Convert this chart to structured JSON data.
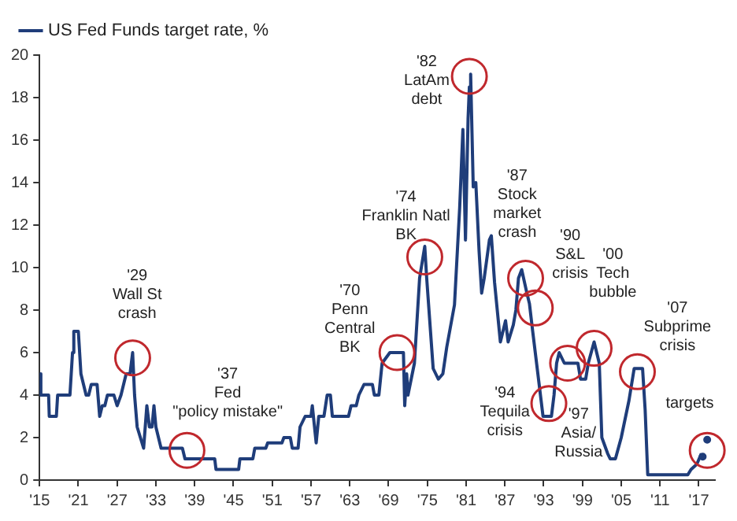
{
  "chart_data": {
    "type": "line",
    "x": [
      1915,
      1915.2,
      1916.4,
      1916.5,
      1917.6,
      1917.8,
      1919.7,
      1920.1,
      1920.3,
      1921,
      1921.4,
      1921.8,
      1922.2,
      1922.6,
      1923,
      1923.9,
      1924.3,
      1924.7,
      1925.1,
      1925.5,
      1926.5,
      1927,
      1927.6,
      1928.4,
      1929,
      1929.4,
      1929.7,
      1930.1,
      1930.6,
      1931.1,
      1931.6,
      1932,
      1932.4,
      1932.7,
      1933,
      1933.8,
      1937.1,
      1937.5,
      1942.1,
      1942.3,
      1945.8,
      1946,
      1948,
      1948.3,
      1950,
      1950.3,
      1952.5,
      1952.8,
      1953.8,
      1954.1,
      1955,
      1955.3,
      1956.1,
      1957,
      1957.2,
      1957.8,
      1958.2,
      1959,
      1959.5,
      1960,
      1960.3,
      1962.8,
      1963.2,
      1964,
      1964.4,
      1965.2,
      1966.5,
      1966.8,
      1967.5,
      1968,
      1969.2,
      1971.3,
      1971.5,
      1971.8,
      1972,
      1973,
      1973.8,
      1974.6,
      1974.9,
      1975.9,
      1976.7,
      1977.4,
      1978,
      1979.2,
      1980,
      1980.5,
      1980.9,
      1981.3,
      1981.5,
      1981.7,
      1982.1,
      1982.5,
      1983,
      1983.4,
      1983.8,
      1984.6,
      1984.9,
      1985.4,
      1986.3,
      1987.1,
      1987.5,
      1988.3,
      1988.7,
      1989.1,
      1989.6,
      1990.4,
      1990.8,
      1991.3,
      1992.1,
      1992.9,
      1994.2,
      1994.6,
      1995,
      1995.4,
      1996.2,
      1998.3,
      1998.7,
      1999.5,
      1999.9,
      2000.8,
      2001.6,
      2002,
      2002.9,
      2003.3,
      2004.1,
      2005,
      2006.2,
      2007,
      2008.3,
      2008.7,
      2009.1,
      2015.3,
      2015.8,
      2016.7,
      2017.4
    ],
    "series": [
      {
        "name": "US Fed Funds target rate, %",
        "color": "#1f3d7a",
        "values": [
          5,
          4,
          4,
          3,
          3,
          4,
          4,
          6,
          7,
          7,
          5,
          4.5,
          4,
          4,
          4.5,
          4.5,
          3,
          3.5,
          3.5,
          4,
          4,
          3.5,
          4,
          5,
          5,
          6,
          4,
          2.5,
          2,
          1.5,
          3.5,
          2.5,
          2.5,
          3.5,
          2.5,
          1.5,
          1.5,
          1,
          1,
          0.5,
          0.5,
          1,
          1,
          1.5,
          1.5,
          1.75,
          1.75,
          2,
          2,
          1.5,
          1.5,
          2.5,
          3,
          3,
          3.5,
          1.75,
          3,
          3,
          4,
          4,
          3,
          3,
          3.5,
          3.5,
          4,
          4.5,
          4.5,
          4,
          4,
          5.5,
          6,
          6,
          3.5,
          5,
          4,
          5.5,
          9.5,
          11,
          9.5,
          5.25,
          4.75,
          5,
          6.25,
          8.25,
          12.8,
          16.5,
          11.3,
          17,
          18.5,
          19.1,
          13.8,
          14,
          10.8,
          8.8,
          9.5,
          11.3,
          11.5,
          9.3,
          6.5,
          7.5,
          6.5,
          7.3,
          8,
          9.5,
          9.9,
          8.8,
          8.3,
          7,
          5,
          3,
          3,
          4,
          5.5,
          6,
          5.5,
          5.5,
          4.75,
          4.75,
          5.5,
          6.5,
          5.5,
          2,
          1.25,
          1,
          1,
          2,
          3.75,
          5.25,
          5.25,
          3.3,
          0.25,
          0.25,
          0.5,
          0.75,
          1.25
        ]
      },
      {
        "type": "scatter",
        "color": "#1f3d7a",
        "marker": "circle",
        "x": [
          2017.6,
          2018.3
        ],
        "values": [
          1.1,
          1.9
        ]
      }
    ],
    "xlim": [
      1915,
      2019.5
    ],
    "xticks": [
      {
        "value": 1915,
        "label": "'15"
      },
      {
        "value": 1921,
        "label": "'21"
      },
      {
        "value": 1927,
        "label": "'27"
      },
      {
        "value": 1933,
        "label": "'33"
      },
      {
        "value": 1939,
        "label": "'39"
      },
      {
        "value": 1945,
        "label": "'45"
      },
      {
        "value": 1951,
        "label": "'51"
      },
      {
        "value": 1957,
        "label": "'57"
      },
      {
        "value": 1963,
        "label": "'63"
      },
      {
        "value": 1969,
        "label": "'69"
      },
      {
        "value": 1975,
        "label": "'75"
      },
      {
        "value": 1981,
        "label": "'81"
      },
      {
        "value": 1987,
        "label": "'87"
      },
      {
        "value": 1993,
        "label": "'93"
      },
      {
        "value": 1999,
        "label": "'99"
      },
      {
        "value": 2005,
        "label": "'05"
      },
      {
        "value": 2011,
        "label": "'11"
      },
      {
        "value": 2017,
        "label": "'17"
      }
    ],
    "ylim": [
      0,
      20
    ],
    "yticks": [
      0,
      2,
      4,
      6,
      8,
      10,
      12,
      14,
      16,
      18,
      20
    ],
    "grid": false,
    "legend": "top left",
    "line_style": "solid",
    "marker": "none",
    "annotations": [
      {
        "text": "'29\nWall St\ncrash",
        "x": 1929.4,
        "y": 5.75
      },
      {
        "text": "'37\nFed\n\"policy mistake\"",
        "x": 1937.8,
        "y": 1.4
      },
      {
        "text": "'70\nPenn\nCentral\nBK",
        "x": 1970.3,
        "y": 6
      },
      {
        "text": "'74\nFranklin Natl\nBK",
        "x": 1974.6,
        "y": 10.5
      },
      {
        "text": "'82\nLatAm\ndebt",
        "x": 1981.5,
        "y": 19
      },
      {
        "text": "'87\nStock\nmarket\ncrash",
        "x": 1990.2,
        "y": 9.5
      },
      {
        "text": "'90\nS&L\ncrisis",
        "x": 1991.7,
        "y": 8.1
      },
      {
        "text": "'94\nTequila\ncrisis",
        "x": 1993.8,
        "y": 3.6
      },
      {
        "text": "'97\nAsia/\nRussia",
        "x": 1996.7,
        "y": 5.5
      },
      {
        "text": "'00\nTech\nbubble",
        "x": 2000.8,
        "y": 6.2
      },
      {
        "text": "'07\nSubprime\ncrisis",
        "x": 2007.5,
        "y": 5.1
      },
      {
        "text": "targets",
        "x": 2018.3,
        "y": 1.4
      }
    ]
  }
}
